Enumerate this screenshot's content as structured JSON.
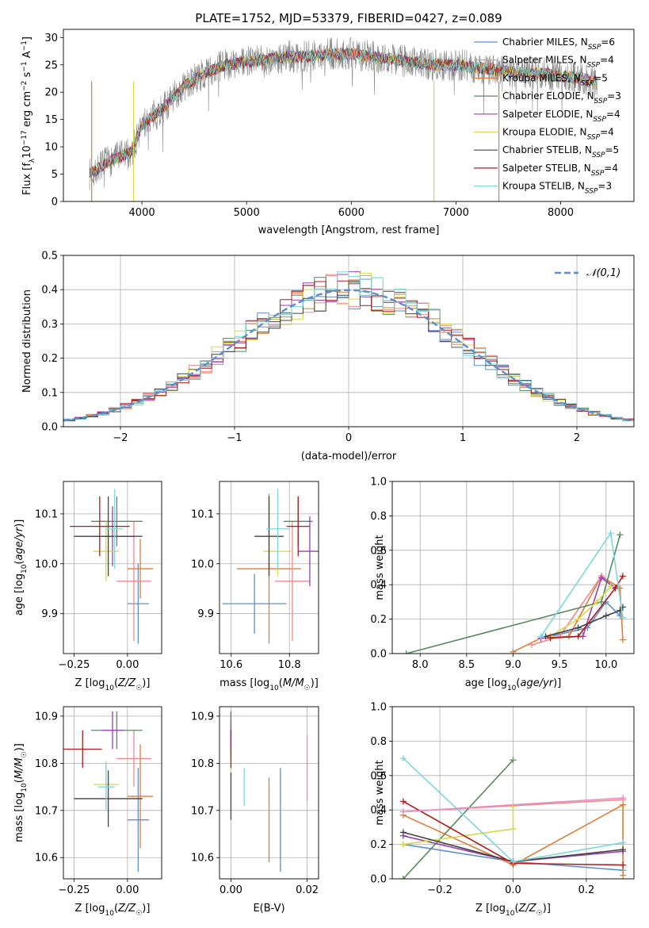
{
  "figure_title": "PLATE=1752, MJD=53379, FIBERID=0427, z=0.089",
  "colors": {
    "c1": "#5b8fcf",
    "c2": "#e07b39",
    "c3": "#f08a8a",
    "c4": "#5a8a60",
    "c5": "#9b3fb5",
    "c6": "#d8d84a",
    "c7": "#444444",
    "c8": "#b01c1c",
    "c9": "#7fd6d8",
    "c10": "#8a8a8a",
    "c11": "#e88fc8"
  },
  "chart_data": [
    {
      "id": "spectrum",
      "type": "line",
      "title": "PLATE=1752, MJD=53379, FIBERID=0427, z=0.089",
      "xlabel": "wavelength [Angstrom, rest frame]",
      "ylabel": "Flux [fλ10^-17 erg cm^-2 s^-1 A^-1]",
      "xlim": [
        3250,
        8700
      ],
      "ylim": [
        0,
        31.5
      ],
      "xticks": [
        4000,
        5000,
        6000,
        7000,
        8000
      ],
      "yticks": [
        0,
        5,
        10,
        15,
        20,
        25,
        30
      ],
      "legend": "top-right",
      "series": [
        {
          "name": "Chabrier MILES, N_SSP=6",
          "color": "#5b8fcf"
        },
        {
          "name": "Salpeter MILES, N_SSP=4",
          "color": "#f08a8a"
        },
        {
          "name": "Kroupa MILES, N_SSP=5",
          "color": "#e07b39"
        },
        {
          "name": "Chabrier ELODIE, N_SSP=3",
          "color": "#5a8a60"
        },
        {
          "name": "Salpeter ELODIE, N_SSP=4",
          "color": "#9b3fb5"
        },
        {
          "name": "Kroupa ELODIE, N_SSP=4",
          "color": "#d8d84a"
        },
        {
          "name": "Chabrier STELIB, N_SSP=5",
          "color": "#444444"
        },
        {
          "name": "Salpeter STELIB, N_SSP=4",
          "color": "#b01c1c"
        },
        {
          "name": "Kroupa STELIB, N_SSP=3",
          "color": "#7fd6d8"
        }
      ],
      "continuum": {
        "x": [
          3500,
          3700,
          3900,
          4000,
          4200,
          4400,
          4600,
          4800,
          5000,
          5200,
          5400,
          5600,
          5800,
          6000,
          6200,
          6400,
          6600,
          6800,
          7000,
          7200,
          7400,
          7600,
          7800,
          8000,
          8200,
          8350
        ],
        "y": [
          5,
          7.5,
          9,
          14,
          17,
          21,
          23.5,
          25,
          25.5,
          26,
          26.5,
          26.5,
          27,
          27,
          26.5,
          26,
          25.5,
          25,
          25,
          24.5,
          24,
          23.5,
          23.5,
          23,
          22.5,
          22
        ]
      }
    },
    {
      "id": "residuals",
      "type": "histogram",
      "xlabel": "(data-model)/error",
      "ylabel": "Normed distribution",
      "xlim": [
        -2.5,
        2.5
      ],
      "ylim": [
        0,
        0.5
      ],
      "xticks": [
        -2,
        -1,
        0,
        1,
        2
      ],
      "yticks": [
        0.0,
        0.1,
        0.2,
        0.3,
        0.4,
        0.5
      ],
      "legend": "top-right",
      "legend_label": "𝒩(0,1)",
      "bin_width": 0.1
    },
    {
      "id": "age_vs_Z",
      "type": "errorbar",
      "xlabel": "Z [log10(Z/Z☉)]",
      "ylabel": "age [log10(age/yr)]",
      "xlim": [
        -0.3,
        0.16
      ],
      "ylim": [
        9.82,
        10.165
      ],
      "xticks": [
        -0.25,
        0.0
      ],
      "yticks": [
        9.9,
        10.0,
        10.1
      ],
      "points": [
        {
          "color": "#5b8fcf",
          "x": 0.05,
          "xerr": 0.05,
          "y": 9.92,
          "yerr": 0.08
        },
        {
          "color": "#e07b39",
          "x": 0.06,
          "xerr": 0.06,
          "y": 9.99,
          "yerr": 0.06
        },
        {
          "color": "#f08a8a",
          "x": 0.03,
          "xerr": 0.08,
          "y": 9.965,
          "yerr": 0.12
        },
        {
          "color": "#5a8a60",
          "x": -0.05,
          "xerr": 0.12,
          "y": 10.085,
          "yerr": 0.05
        },
        {
          "color": "#9b3fb5",
          "x": -0.07,
          "xerr": 0.1,
          "y": 10.055,
          "yerr": 0.06
        },
        {
          "color": "#d8d84a",
          "x": -0.1,
          "xerr": 0.06,
          "y": 10.025,
          "yerr": 0.06
        },
        {
          "color": "#444444",
          "x": -0.09,
          "xerr": 0.16,
          "y": 10.055,
          "yerr": 0.08
        },
        {
          "color": "#b01c1c",
          "x": -0.13,
          "xerr": 0.14,
          "y": 10.075,
          "yerr": 0.06
        },
        {
          "color": "#7fd6d8",
          "x": -0.06,
          "xerr": 0.04,
          "y": 10.07,
          "yerr": 0.08
        }
      ]
    },
    {
      "id": "age_vs_mass",
      "type": "errorbar",
      "xlabel": "mass [log10(M/M☉)]",
      "xlim": [
        10.56,
        10.9
      ],
      "ylim": [
        9.82,
        10.165
      ],
      "xticks": [
        10.6,
        10.8
      ],
      "yticks": [
        9.9,
        10.0,
        10.1
      ],
      "points": [
        {
          "color": "#5b8fcf",
          "x": 10.68,
          "xerr": 0.11,
          "y": 9.92,
          "yerr": 0.06
        },
        {
          "color": "#e07b39",
          "x": 10.73,
          "xerr": 0.11,
          "y": 9.99,
          "yerr": 0.15
        },
        {
          "color": "#f08a8a",
          "x": 10.81,
          "xerr": 0.06,
          "y": 9.965,
          "yerr": 0.12
        },
        {
          "color": "#5a8a60",
          "x": 10.83,
          "xerr": 0.05,
          "y": 10.085,
          "yerr": 0.05
        },
        {
          "color": "#9b3fb5",
          "x": 10.87,
          "xerr": 0.04,
          "y": 10.025,
          "yerr": 0.07
        },
        {
          "color": "#d8d84a",
          "x": 10.76,
          "xerr": 0.05,
          "y": 10.025,
          "yerr": 0.05
        },
        {
          "color": "#444444",
          "x": 10.73,
          "xerr": 0.05,
          "y": 10.055,
          "yerr": 0.08
        },
        {
          "color": "#b01c1c",
          "x": 10.83,
          "xerr": 0.04,
          "y": 10.075,
          "yerr": 0.06
        },
        {
          "color": "#7fd6d8",
          "x": 10.76,
          "xerr": 0.04,
          "y": 10.07,
          "yerr": 0.08
        }
      ]
    },
    {
      "id": "weight_vs_age",
      "type": "line",
      "xlabel": "age [log10(age/yr)]",
      "ylabel": "mass weight",
      "xlim": [
        7.7,
        10.3
      ],
      "ylim": [
        0,
        1
      ],
      "xticks": [
        8.0,
        8.5,
        9.0,
        9.5,
        10.0
      ],
      "yticks": [
        0.0,
        0.2,
        0.4,
        0.6,
        0.8,
        1.0
      ],
      "series": [
        {
          "color": "#5b8fcf",
          "x": [
            9.4,
            9.8,
            10.0,
            10.15
          ],
          "y": [
            0.1,
            0.15,
            0.3,
            0.22
          ]
        },
        {
          "color": "#e07b39",
          "x": [
            9.0,
            9.3,
            9.6,
            9.95,
            10.15,
            10.18
          ],
          "y": [
            0.01,
            0.09,
            0.1,
            0.45,
            0.38,
            0.08
          ]
        },
        {
          "color": "#f08a8a",
          "x": [
            9.2,
            9.5,
            9.95,
            10.1
          ],
          "y": [
            0.05,
            0.1,
            0.45,
            0.38
          ]
        },
        {
          "color": "#5a8a60",
          "x": [
            7.85,
            9.95,
            10.15
          ],
          "y": [
            0.0,
            0.3,
            0.69
          ]
        },
        {
          "color": "#9b3fb5",
          "x": [
            9.3,
            9.75,
            9.95,
            10.1
          ],
          "y": [
            0.09,
            0.1,
            0.44,
            0.38
          ]
        },
        {
          "color": "#d8d84a",
          "x": [
            9.4,
            9.7,
            9.9,
            10.05
          ],
          "y": [
            0.1,
            0.2,
            0.3,
            0.39
          ]
        },
        {
          "color": "#444444",
          "x": [
            9.35,
            9.7,
            10.0,
            10.15,
            10.18
          ],
          "y": [
            0.1,
            0.15,
            0.22,
            0.25,
            0.27
          ]
        },
        {
          "color": "#b01c1c",
          "x": [
            9.4,
            9.7,
            10.1,
            10.18
          ],
          "y": [
            0.09,
            0.1,
            0.38,
            0.45
          ]
        },
        {
          "color": "#7fd6d8",
          "x": [
            9.3,
            10.05,
            10.18
          ],
          "y": [
            0.1,
            0.7,
            0.21
          ]
        }
      ]
    },
    {
      "id": "mass_vs_Z",
      "type": "errorbar",
      "xlabel": "Z [log10(Z/Z☉)]",
      "ylabel": "mass [log10(M/M☉)]",
      "xlim": [
        -0.3,
        0.16
      ],
      "ylim": [
        10.555,
        10.92
      ],
      "xticks": [
        -0.25,
        0.0
      ],
      "yticks": [
        10.6,
        10.7,
        10.8,
        10.9
      ],
      "points": [
        {
          "color": "#5b8fcf",
          "x": 0.05,
          "xerr": 0.05,
          "y": 10.68,
          "yerr": 0.11
        },
        {
          "color": "#e07b39",
          "x": 0.06,
          "xerr": 0.06,
          "y": 10.73,
          "yerr": 0.11
        },
        {
          "color": "#f08a8a",
          "x": 0.03,
          "xerr": 0.08,
          "y": 10.81,
          "yerr": 0.06
        },
        {
          "color": "#5a8a60",
          "x": -0.05,
          "xerr": 0.12,
          "y": 10.87,
          "yerr": 0.04
        },
        {
          "color": "#9b3fb5",
          "x": -0.07,
          "xerr": 0.05,
          "y": 10.87,
          "yerr": 0.04
        },
        {
          "color": "#d8d84a",
          "x": -0.1,
          "xerr": 0.06,
          "y": 10.755,
          "yerr": 0.05
        },
        {
          "color": "#444444",
          "x": -0.09,
          "xerr": 0.16,
          "y": 10.725,
          "yerr": 0.06
        },
        {
          "color": "#b01c1c",
          "x": -0.21,
          "xerr": 0.09,
          "y": 10.83,
          "yerr": 0.04
        },
        {
          "color": "#7fd6d8",
          "x": -0.1,
          "xerr": 0.04,
          "y": 10.75,
          "yerr": 0.05
        }
      ]
    },
    {
      "id": "mass_vs_ebv",
      "type": "errorbar",
      "xlabel": "E(B-V)",
      "xlim": [
        -0.003,
        0.023
      ],
      "ylim": [
        10.555,
        10.92
      ],
      "xticks": [
        0.0,
        0.02
      ],
      "yticks": [
        10.6,
        10.7,
        10.8,
        10.9
      ],
      "points": [
        {
          "color": "#5b8fcf",
          "x": 0.013,
          "xerr": 0,
          "y": 10.68,
          "yerr": 0.11
        },
        {
          "color": "#e07b39",
          "x": 0.01,
          "xerr": 0,
          "y": 10.68,
          "yerr": 0.09
        },
        {
          "color": "#f08a8a",
          "x": 0.02,
          "xerr": 0,
          "y": 10.79,
          "yerr": 0.07
        },
        {
          "color": "#5a8a60",
          "x": 0.0,
          "xerr": 0,
          "y": 10.85,
          "yerr": 0.04
        },
        {
          "color": "#9b3fb5",
          "x": 0.0,
          "xerr": 0,
          "y": 10.87,
          "yerr": 0.04
        },
        {
          "color": "#d8d84a",
          "x": 0.0,
          "xerr": 0,
          "y": 10.8,
          "yerr": 0.03
        },
        {
          "color": "#444444",
          "x": 0.0,
          "xerr": 0,
          "y": 10.73,
          "yerr": 0.05
        },
        {
          "color": "#b01c1c",
          "x": 0.0,
          "xerr": 0,
          "y": 10.83,
          "yerr": 0.04
        },
        {
          "color": "#7fd6d8",
          "x": 0.0035,
          "xerr": 0,
          "y": 10.75,
          "yerr": 0.04
        }
      ]
    },
    {
      "id": "weight_vs_Z",
      "type": "line",
      "xlabel": "Z [log10(Z/Z☉)]",
      "ylabel": "mass weight",
      "xlim": [
        -0.33,
        0.33
      ],
      "ylim": [
        0,
        1
      ],
      "xticks": [
        -0.2,
        0.0,
        0.2
      ],
      "yticks": [
        0.0,
        0.2,
        0.4,
        0.6,
        0.8,
        1.0
      ],
      "series": [
        {
          "color": "#5b8fcf",
          "x": [
            -0.3,
            0.0,
            0.3
          ],
          "y": [
            0.2,
            0.1,
            0.05
          ]
        },
        {
          "color": "#e07b39",
          "x": [
            -0.3,
            0.0,
            0.3,
            0.3
          ],
          "y": [
            0.37,
            0.08,
            0.43,
            0.02
          ]
        },
        {
          "color": "#f08a8a",
          "x": [
            -0.3,
            0.3
          ],
          "y": [
            0.39,
            0.46
          ]
        },
        {
          "color": "#5a8a60",
          "x": [
            -0.3,
            0.0
          ],
          "y": [
            0.0,
            0.69
          ]
        },
        {
          "color": "#9b3fb5",
          "x": [
            -0.3,
            0.0,
            0.3
          ],
          "y": [
            0.25,
            0.1,
            0.16
          ]
        },
        {
          "color": "#d8d84a",
          "x": [
            -0.3,
            0.0,
            0.0
          ],
          "y": [
            0.2,
            0.29,
            0.42
          ]
        },
        {
          "color": "#444444",
          "x": [
            -0.3,
            0.0,
            0.3
          ],
          "y": [
            0.27,
            0.1,
            0.17
          ]
        },
        {
          "color": "#b01c1c",
          "x": [
            -0.3,
            0.0,
            0.3
          ],
          "y": [
            0.45,
            0.09,
            0.08
          ]
        },
        {
          "color": "#7fd6d8",
          "x": [
            -0.3,
            0.0,
            0.3
          ],
          "y": [
            0.7,
            0.1,
            0.21
          ]
        },
        {
          "color": "#e88fc8",
          "x": [
            -0.3,
            0.3
          ],
          "y": [
            0.39,
            0.47
          ]
        }
      ]
    }
  ]
}
